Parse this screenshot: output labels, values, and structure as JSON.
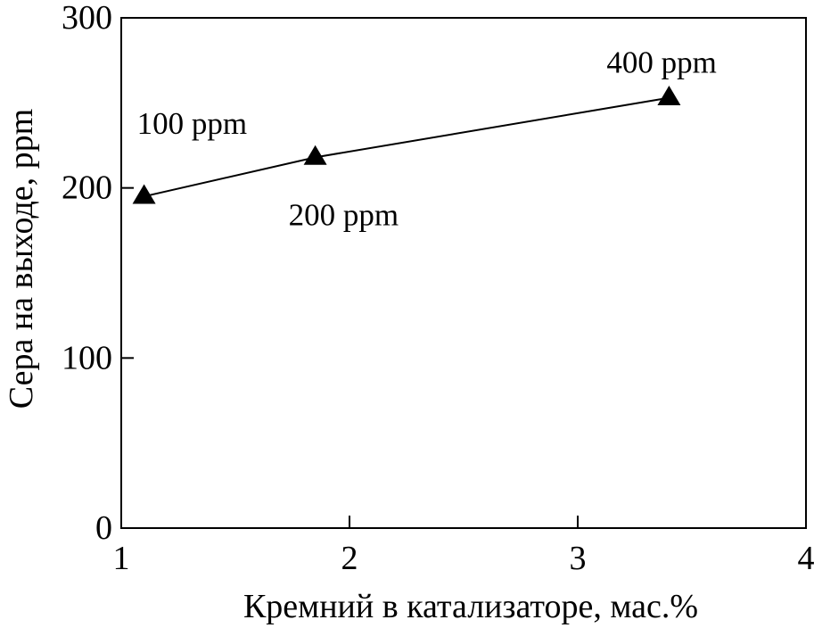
{
  "chart_data": {
    "type": "line",
    "xlabel": "Кремний в катализаторе, мас.%",
    "ylabel": "Сера на выходе, ppm",
    "xlim": [
      1,
      4
    ],
    "ylim": [
      0,
      300
    ],
    "xticks": [
      1,
      2,
      3,
      4
    ],
    "yticks": [
      0,
      100,
      200,
      300
    ],
    "grid": false,
    "series": [
      {
        "marker": "triangle",
        "x": [
          1.1,
          1.85,
          3.4
        ],
        "y": [
          195,
          218,
          253
        ]
      }
    ],
    "annotations": [
      {
        "text": "100 ppm",
        "x": 1.1,
        "y": 195
      },
      {
        "text": "200 ppm",
        "x": 1.85,
        "y": 218
      },
      {
        "text": "400 ppm",
        "x": 3.4,
        "y": 253
      }
    ],
    "colors": {
      "line": "#000000",
      "marker": "#000000",
      "axis": "#000000"
    }
  }
}
